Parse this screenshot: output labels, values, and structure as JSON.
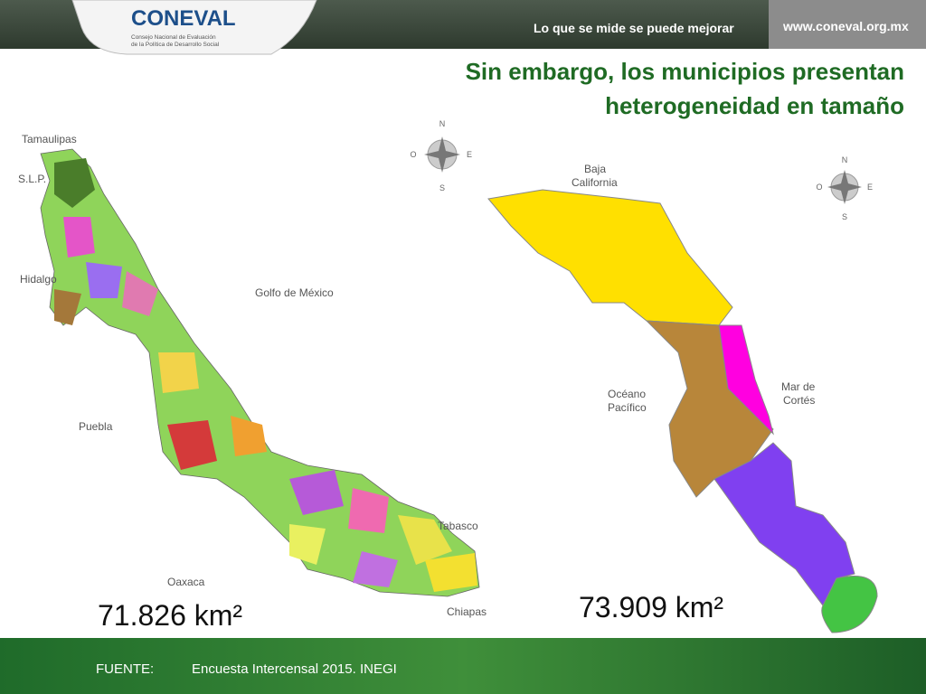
{
  "header": {
    "logo": "CONEVAL",
    "logo_subtitle": [
      "Consejo Nacional de Evaluación",
      "de la Política de Desarrollo Social"
    ],
    "slogan": "Lo que se mide se puede mejorar",
    "url": "www.coneval.org.mx"
  },
  "title": [
    "Sin embargo, los municipios presentan",
    "heterogeneidad en tamaño"
  ],
  "maps": [
    {
      "labels": {
        "tamaulipas": "Tamaulipas",
        "slp": "S.L.P.",
        "hidalgo": "Hidalgo",
        "golfo": "Golfo de México",
        "puebla": "Puebla",
        "oaxaca": "Oaxaca",
        "tabasco": "Tabasco",
        "chiapas": "Chiapas"
      },
      "area": "71.826 km²"
    },
    {
      "labels": {
        "baja_california": [
          "Baja",
          "California"
        ],
        "oceano": [
          "Océano",
          "Pacífico"
        ],
        "mar": [
          "Mar de",
          "Cortés"
        ]
      },
      "area": "73.909 km²"
    }
  ],
  "compass": {
    "n": "N",
    "s": "S",
    "e": "E",
    "w": "O"
  },
  "footer": {
    "label": "FUENTE:",
    "source": "Encuesta Intercensal 2015. INEGI"
  }
}
